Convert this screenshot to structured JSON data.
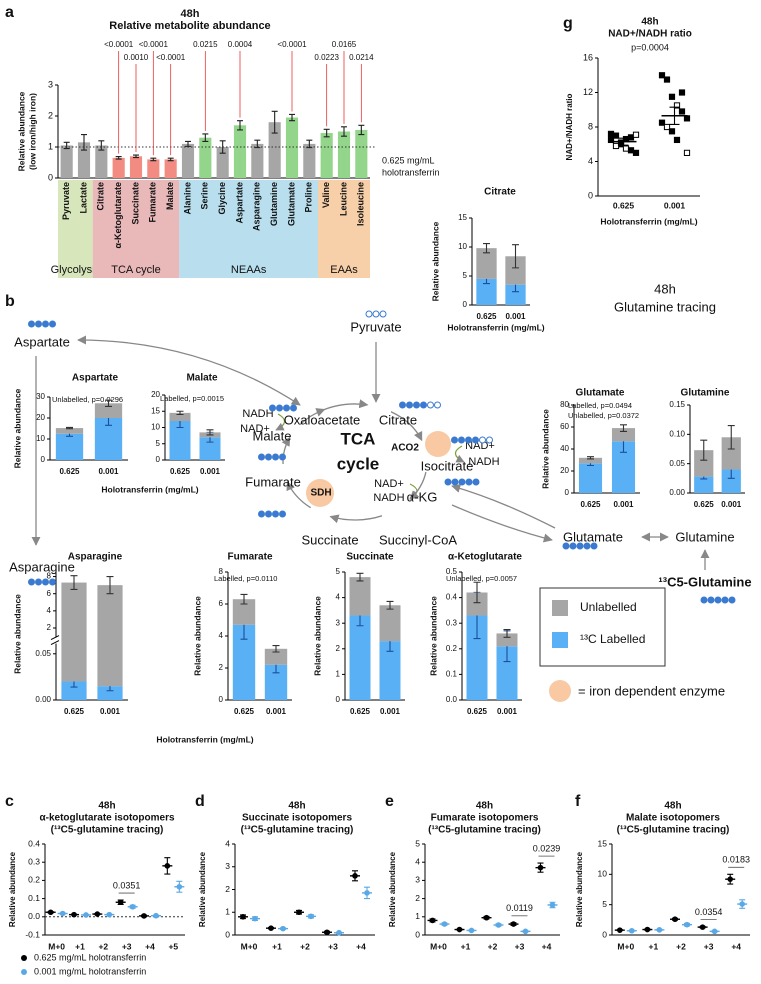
{
  "panel_labels": [
    "a",
    "b",
    "c",
    "d",
    "e",
    "f",
    "g"
  ],
  "chart_data": [
    {
      "type": "bar",
      "title": "48h",
      "subtitle": "Relative metabolite abundance",
      "ylabel": [
        "Relative abundance",
        "(low iron/high iron)"
      ],
      "categories": [
        "Pyruvate",
        "Lactate",
        "Citrate",
        "α-Ketoglutarate",
        "Succinate",
        "Fumarate",
        "Malate",
        "Alanine",
        "Serine",
        "Glycine",
        "Aspartate",
        "Asparagine",
        "Glutamine",
        "Glutamate",
        "Proline",
        "Valine",
        "Leucine",
        "Isoleucine"
      ],
      "values": [
        1.05,
        1.15,
        1.05,
        0.65,
        0.7,
        0.6,
        0.6,
        1.1,
        1.3,
        1.0,
        1.7,
        1.1,
        1.8,
        1.95,
        1.1,
        1.45,
        1.5,
        1.55
      ],
      "errors": [
        0.1,
        0.25,
        0.15,
        0.04,
        0.04,
        0.04,
        0.04,
        0.08,
        0.12,
        0.2,
        0.15,
        0.12,
        0.35,
        0.1,
        0.12,
        0.12,
        0.15,
        0.15
      ],
      "colors": [
        "#a6a6a6",
        "#a6a6a6",
        "#a6a6a6",
        "#f28b82",
        "#f28b82",
        "#f28b82",
        "#f28b82",
        "#a6a6a6",
        "#93d58a",
        "#a6a6a6",
        "#93d58a",
        "#a6a6a6",
        "#a6a6a6",
        "#93d58a",
        "#a6a6a6",
        "#93d58a",
        "#93d58a",
        "#93d58a"
      ],
      "ylim": [
        0,
        3
      ],
      "yticks": [
        0,
        1,
        2,
        3
      ],
      "reference_line": {
        "value": 1,
        "label": [
          "0.625 mg/mL",
          "holotransferrin"
        ]
      },
      "annotation_color": "#e8383d",
      "annotations": [
        {
          "category": 3,
          "text": "<0.0001"
        },
        {
          "category": 4,
          "text": "0.0010"
        },
        {
          "category": 5,
          "text": "<0.0001"
        },
        {
          "category": 6,
          "text": "<0.0001"
        },
        {
          "category": 8,
          "text": "0.0215"
        },
        {
          "category": 10,
          "text": "0.0004"
        },
        {
          "category": 13,
          "text": "<0.0001"
        },
        {
          "category": 15,
          "text": "0.0223"
        },
        {
          "category": 16,
          "text": "0.0165"
        },
        {
          "category": 17,
          "text": "0.0214"
        }
      ],
      "groups": [
        {
          "name": "Glycolysis",
          "start": 0,
          "end": 1,
          "color": "#d8e7bb",
          "text_color": "#5e7a1e"
        },
        {
          "name": "TCA cycle",
          "start": 2,
          "end": 6,
          "color": "#e9b8b8",
          "text_color": "#9b3b3b"
        },
        {
          "name": "NEAAs",
          "start": 7,
          "end": 14,
          "color": "#b9dfee",
          "text_color": "#3a7a9a"
        },
        {
          "name": "EAAs",
          "start": 15,
          "end": 17,
          "color": "#f7cfa8",
          "text_color": "#c06a20"
        }
      ]
    },
    {
      "type": "scatter",
      "title": "48h",
      "subtitle": "NAD+/NADH ratio",
      "annotation": "p=0.0004",
      "ylabel": "NAD+/NADH ratio",
      "xlabel": "Holotransferrin (mg/mL)",
      "categories": [
        "0.625",
        "0.001"
      ],
      "points": [
        [
          6.5,
          7.0,
          6.0,
          5.5,
          6.8,
          5.0,
          7.2,
          5.8,
          6.2,
          6.6,
          5.3,
          7.1
        ],
        [
          14.0,
          13.5,
          11.5,
          10.5,
          9.8,
          9.0,
          8.5,
          8.0,
          7.5,
          6.5,
          12.0,
          5.0
        ]
      ],
      "values": [
        6.3,
        9.3
      ],
      "errors": [
        0.4,
        1.0
      ],
      "color": "#000000",
      "ylim": [
        0,
        16
      ],
      "yticks": [
        0,
        4,
        8,
        12,
        16
      ]
    },
    {
      "type": "stacked_bar",
      "title": "Citrate",
      "ylabel": "Relative abundance",
      "xlabel": "Holotransferrin (mg/mL)",
      "categories": [
        "0.625",
        "0.001"
      ],
      "series": [
        {
          "name": "¹³C Labelled",
          "color": "#5ab0f5",
          "error_color": "#1a4f9c",
          "values": [
            4.5,
            3.5
          ],
          "errors": [
            0.8,
            1.2
          ]
        },
        {
          "name": "Unlabelled",
          "color": "#a6a6a6",
          "error_color": "#333333",
          "values": [
            5.3,
            4.9
          ],
          "errors": [
            0.8,
            2.0
          ]
        }
      ],
      "ylim": [
        0,
        15
      ],
      "yticks": [
        0,
        5,
        10,
        15
      ]
    },
    {
      "type": "stacked_bar",
      "title": "Aspartate",
      "ylabel": "Relative abundance",
      "xlabel": "Holotransferrin (mg/mL)",
      "annotations": [
        "Unlabelled, p=0.0296"
      ],
      "categories": [
        "0.625",
        "0.001"
      ],
      "series": [
        {
          "name": "¹³C Labelled",
          "color": "#5ab0f5",
          "error_color": "#1a4f9c",
          "values": [
            12.5,
            20
          ],
          "errors": [
            1.2,
            3.5
          ]
        },
        {
          "name": "Unlabelled",
          "color": "#a6a6a6",
          "error_color": "#333333",
          "values": [
            2.7,
            7
          ],
          "errors": [
            0.3,
            1.5
          ]
        }
      ],
      "ylim": [
        0,
        30
      ],
      "yticks": [
        0,
        10,
        20,
        30
      ]
    },
    {
      "type": "stacked_bar",
      "title": "Malate",
      "annotations": [
        "Labelled, p=0.0015"
      ],
      "categories": [
        "0.625",
        "0.001"
      ],
      "series": [
        {
          "name": "¹³C Labelled",
          "color": "#5ab0f5",
          "error_color": "#1a4f9c",
          "values": [
            12,
            7
          ],
          "errors": [
            2.0,
            1.5
          ]
        },
        {
          "name": "Unlabelled",
          "color": "#a6a6a6",
          "error_color": "#333333",
          "values": [
            2.5,
            1.5
          ],
          "errors": [
            0.5,
            0.8
          ]
        }
      ],
      "ylim": [
        0,
        20
      ],
      "yticks": [
        0,
        5,
        10,
        15,
        20
      ]
    },
    {
      "type": "stacked_bar",
      "title": "Glutamate",
      "ylabel": "Relative abundance",
      "annotations": [
        "Labelled, p=0.0494",
        "Unlabelled, p=0.0372"
      ],
      "categories": [
        "0.625",
        "0.001"
      ],
      "series": [
        {
          "name": "¹³C Labelled",
          "color": "#5ab0f5",
          "error_color": "#1a4f9c",
          "values": [
            27,
            47
          ],
          "errors": [
            2,
            10
          ]
        },
        {
          "name": "Unlabelled",
          "color": "#a6a6a6",
          "error_color": "#333333",
          "values": [
            5,
            12
          ],
          "errors": [
            1,
            3
          ]
        }
      ],
      "ylim": [
        0,
        80
      ],
      "yticks": [
        0,
        20,
        40,
        60,
        80
      ]
    },
    {
      "type": "stacked_bar",
      "title": "Glutamine",
      "categories": [
        "0.625",
        "0.001"
      ],
      "series": [
        {
          "name": "¹³C Labelled",
          "color": "#5ab0f5",
          "error_color": "#1a4f9c",
          "values": [
            0.028,
            0.04
          ],
          "errors": [
            0.004,
            0.015
          ]
        },
        {
          "name": "Unlabelled",
          "color": "#a6a6a6",
          "error_color": "#333333",
          "values": [
            0.045,
            0.055
          ],
          "errors": [
            0.017,
            0.02
          ]
        }
      ],
      "ylim": [
        0,
        0.15
      ],
      "yticks": [
        {
          "value": 0,
          "label": "0.00"
        },
        0.05,
        {
          "value": 0.1,
          "label": "0.10"
        },
        0.15
      ]
    },
    {
      "type": "stacked_bar",
      "title": "Asparagine",
      "ylabel": "Relative abundance",
      "xlabel": "Holotransferrin (mg/mL)",
      "categories": [
        "0.625",
        "0.001"
      ],
      "series": [
        {
          "name": "¹³C Labelled",
          "color": "#5ab0f5",
          "error_color": "#1a4f9c",
          "values": [
            0.02,
            0.015
          ],
          "errors": [
            0.006,
            0.005
          ]
        },
        {
          "name": "Unlabelled",
          "color": "#a6a6a6",
          "error_color": "#333333",
          "values": [
            7.28,
            6.985
          ],
          "errors": [
            0.8,
            1.0
          ]
        }
      ],
      "ylim": [
        0,
        9
      ],
      "ybreak": [
        0.06,
        1
      ],
      "yticks": [
        {
          "value": 0,
          "label": "0.00"
        },
        0.05,
        2,
        4,
        6,
        8
      ]
    },
    {
      "type": "stacked_bar",
      "title": "Fumarate",
      "ylabel": "Relative abundance",
      "annotations": [
        "Labelled, p=0.0110"
      ],
      "categories": [
        "0.625",
        "0.001"
      ],
      "series": [
        {
          "name": "¹³C Labelled",
          "color": "#5ab0f5",
          "error_color": "#1a4f9c",
          "values": [
            4.7,
            2.2
          ],
          "errors": [
            0.9,
            0.5
          ]
        },
        {
          "name": "Unlabelled",
          "color": "#a6a6a6",
          "error_color": "#333333",
          "values": [
            1.6,
            1.0
          ],
          "errors": [
            0.3,
            0.2
          ]
        }
      ],
      "ylim": [
        0,
        8
      ],
      "yticks": [
        0,
        2,
        4,
        6,
        8
      ]
    },
    {
      "type": "stacked_bar",
      "title": "Succinate",
      "ylabel": "Relative abundance",
      "categories": [
        "0.625",
        "0.001"
      ],
      "series": [
        {
          "name": "¹³C Labelled",
          "color": "#5ab0f5",
          "error_color": "#1a4f9c",
          "values": [
            3.3,
            2.3
          ],
          "errors": [
            0.4,
            0.4
          ]
        },
        {
          "name": "Unlabelled",
          "color": "#a6a6a6",
          "error_color": "#333333",
          "values": [
            1.5,
            1.4
          ],
          "errors": [
            0.15,
            0.15
          ]
        }
      ],
      "ylim": [
        0,
        5
      ],
      "yticks": [
        0,
        1,
        2,
        3,
        4,
        5
      ]
    },
    {
      "type": "stacked_bar",
      "title": "α-Ketoglutarate",
      "ylabel": "Relative abundance",
      "annotations": [
        "Unlabelled, p=0.0057"
      ],
      "categories": [
        "0.625",
        "0.001"
      ],
      "series": [
        {
          "name": "¹³C Labelled",
          "color": "#5ab0f5",
          "error_color": "#1a4f9c",
          "values": [
            0.33,
            0.21
          ],
          "errors": [
            0.09,
            0.06
          ]
        },
        {
          "name": "Unlabelled",
          "color": "#a6a6a6",
          "error_color": "#333333",
          "values": [
            0.09,
            0.05
          ],
          "errors": [
            0.04,
            0.015
          ]
        }
      ],
      "ylim": [
        0,
        0.5
      ],
      "yticks": [
        {
          "value": 0,
          "label": "0.0"
        },
        0.1,
        0.2,
        0.3,
        0.4,
        0.5
      ]
    },
    {
      "type": "dot",
      "title": "48h",
      "subtitle": "α-ketoglutarate isotopomers",
      "subtitle2": "(¹³C5-glutamine tracing)",
      "ylabel": "Relative abundance",
      "categories": [
        "M+0",
        "+1",
        "+2",
        "+3",
        "+4",
        "+5"
      ],
      "series": [
        {
          "name": "0.625 mg/mL holotransferrin",
          "color": "#000000",
          "values": [
            0.025,
            0.012,
            0.015,
            0.08,
            0.005,
            0.28
          ],
          "errors": [
            0.004,
            0.002,
            0.003,
            0.012,
            0.004,
            0.045
          ]
        },
        {
          "name": "0.001 mg/mL holotransferrin",
          "color": "#5aa9e6",
          "values": [
            0.018,
            0.01,
            0.012,
            0.055,
            0.006,
            0.165
          ],
          "errors": [
            0.003,
            0.002,
            0.002,
            0.008,
            0.003,
            0.03
          ]
        }
      ],
      "ylim": [
        -0.1,
        0.4
      ],
      "yticks": [
        -0.1,
        {
          "value": 0,
          "label": "0.0"
        },
        0.1,
        0.2,
        0.3,
        0.4
      ],
      "zero_line": true,
      "annotations": [
        {
          "category": 3,
          "text": "0.0351"
        }
      ]
    },
    {
      "type": "dot",
      "title": "48h",
      "subtitle": "Succinate isotopomers",
      "subtitle2": "(¹³C5-glutamine tracing)",
      "ylabel": "Relative abundance",
      "categories": [
        "M+0",
        "+1",
        "+2",
        "+3",
        "+4"
      ],
      "series": [
        {
          "name": "0.625 mg/mL holotransferrin",
          "color": "#000000",
          "values": [
            0.8,
            0.3,
            1.0,
            0.12,
            2.6
          ],
          "errors": [
            0.08,
            0.03,
            0.08,
            0.04,
            0.22
          ]
        },
        {
          "name": "0.001 mg/mL holotransferrin",
          "color": "#5aa9e6",
          "values": [
            0.72,
            0.28,
            0.82,
            0.1,
            1.85
          ],
          "errors": [
            0.08,
            0.03,
            0.07,
            0.02,
            0.25
          ]
        }
      ],
      "ylim": [
        0,
        4
      ],
      "yticks": [
        0,
        1,
        2,
        3,
        4
      ]
    },
    {
      "type": "dot",
      "title": "48h",
      "subtitle": "Fumarate isotopomers",
      "subtitle2": "(¹³C5-glutamine tracing)",
      "ylabel": "Relative abundance",
      "categories": [
        "M+0",
        "+1",
        "+2",
        "+3",
        "+4"
      ],
      "series": [
        {
          "name": "0.625 mg/mL holotransferrin",
          "color": "#000000",
          "values": [
            0.8,
            0.3,
            0.95,
            0.6,
            3.7
          ],
          "errors": [
            0.08,
            0.03,
            0.07,
            0.07,
            0.25
          ]
        },
        {
          "name": "0.001 mg/mL holotransferrin",
          "color": "#5aa9e6",
          "values": [
            0.6,
            0.25,
            0.55,
            0.2,
            1.65
          ],
          "errors": [
            0.06,
            0.02,
            0.06,
            0.03,
            0.15
          ]
        }
      ],
      "ylim": [
        0,
        5
      ],
      "yticks": [
        0,
        1,
        2,
        3,
        4,
        5
      ],
      "annotations": [
        {
          "category": 3,
          "text": "0.0119"
        },
        {
          "category": 4,
          "text": "0.0239"
        }
      ]
    },
    {
      "type": "dot",
      "title": "48h",
      "subtitle": "Malate isotopomers",
      "subtitle2": "(¹³C5-glutamine tracing)",
      "ylabel": "Relative abundance",
      "categories": [
        "M+0",
        "+1",
        "+2",
        "+3",
        "+4"
      ],
      "series": [
        {
          "name": "0.625 mg/mL holotransferrin",
          "color": "#000000",
          "values": [
            0.8,
            0.9,
            2.6,
            1.3,
            9.2
          ],
          "errors": [
            0.08,
            0.1,
            0.15,
            0.12,
            0.8
          ]
        },
        {
          "name": "0.001 mg/mL holotransferrin",
          "color": "#5aa9e6",
          "values": [
            0.7,
            0.85,
            1.7,
            0.6,
            5.1
          ],
          "errors": [
            0.08,
            0.08,
            0.2,
            0.1,
            0.7
          ]
        }
      ],
      "ylim": [
        0,
        15
      ],
      "yticks": [
        0,
        5,
        10,
        15
      ],
      "annotations": [
        {
          "category": 3,
          "text": "0.0354"
        },
        {
          "category": 4,
          "text": "0.0183"
        }
      ]
    }
  ],
  "diagram": {
    "title": "48h",
    "subtitle": "Glutamine tracing",
    "nodes": [
      "Pyruvate",
      "Aspartate",
      "Asparagine",
      "Oxaloacetate",
      "Citrate",
      "Isocitrate",
      "α-KG",
      "Succinyl-CoA",
      "Succinate",
      "Fumarate",
      "Malate",
      "Glutamate",
      "Glutamine"
    ],
    "enzymes": [
      "ACO2",
      "SDH"
    ],
    "cofactors": [
      "NADH",
      "NAD+",
      "NAD+",
      "NADH",
      "NAD+",
      "NADH"
    ],
    "center": [
      "TCA",
      "cycle"
    ],
    "tracer": "¹³C5-Glutamine",
    "key": "= iron dependent enzyme"
  }
}
